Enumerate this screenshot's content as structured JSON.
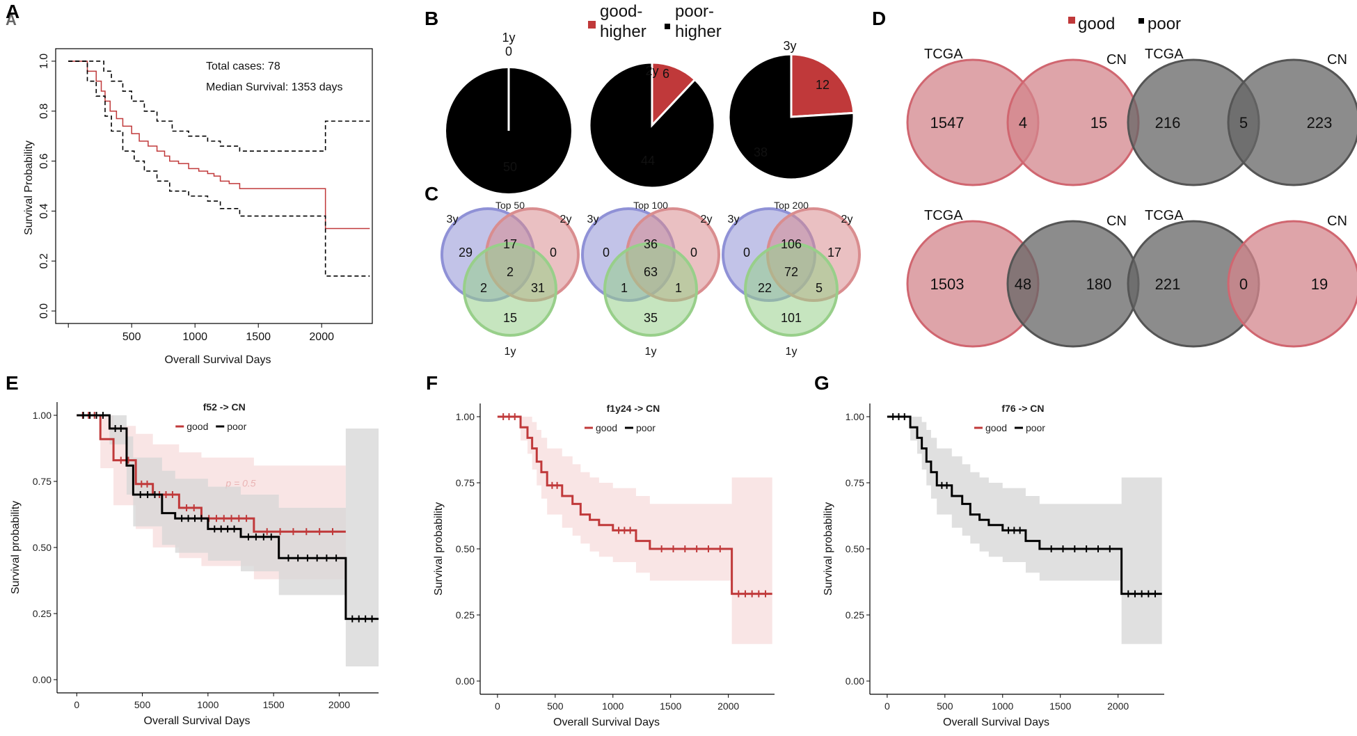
{
  "colors": {
    "good": "#c0393a",
    "poor": "#000000",
    "venn_blue": "#8f91d6",
    "venn_red": "#d98d8f",
    "venn_green": "#98cf8a",
    "venn_good_fill": "#d3868c",
    "venn_poor_fill": "#666666",
    "ci_good": "#f7dcdc",
    "ci_poor": "#d6d6d6"
  },
  "panel_labels": {
    "A": "A",
    "A_shadow": "A",
    "B": "B",
    "C": "C",
    "D": "D",
    "E": "E",
    "F": "F",
    "G": "G"
  },
  "chart_data": [
    {
      "panel": "A",
      "type": "line",
      "xlabel": "Overall Survival Days",
      "ylabel": "Survival Probability",
      "xlim": [
        -100,
        2400
      ],
      "ylim": [
        -0.05,
        1.05
      ],
      "xticks": [
        500,
        1000,
        1500,
        2000
      ],
      "yticks": [
        0.0,
        0.2,
        0.4,
        0.6,
        0.8,
        1.0
      ],
      "ytick_labels": [
        "0.0",
        "0.2",
        "0.4",
        "0.6",
        "0.8",
        "1.0"
      ],
      "annotations": [
        "Total cases: 78",
        "Median Survival: 1353 days"
      ],
      "series": [
        {
          "name": "survival",
          "style": "solid",
          "color": "#c0393a",
          "x": [
            0,
            150,
            150,
            220,
            220,
            260,
            260,
            290,
            290,
            330,
            330,
            380,
            380,
            430,
            430,
            500,
            500,
            560,
            560,
            630,
            630,
            700,
            700,
            760,
            760,
            800,
            800,
            870,
            870,
            950,
            950,
            1030,
            1030,
            1100,
            1100,
            1150,
            1150,
            1200,
            1200,
            1270,
            1270,
            1353,
            1353,
            2030,
            2030,
            2380
          ],
          "y": [
            1.0,
            1.0,
            0.96,
            0.96,
            0.92,
            0.92,
            0.88,
            0.88,
            0.84,
            0.84,
            0.8,
            0.8,
            0.77,
            0.77,
            0.74,
            0.74,
            0.71,
            0.71,
            0.68,
            0.68,
            0.66,
            0.66,
            0.64,
            0.64,
            0.62,
            0.62,
            0.6,
            0.6,
            0.59,
            0.59,
            0.57,
            0.57,
            0.56,
            0.56,
            0.55,
            0.55,
            0.54,
            0.54,
            0.52,
            0.52,
            0.51,
            0.51,
            0.49,
            0.49,
            0.33,
            0.33
          ]
        },
        {
          "name": "upper_ci",
          "style": "dashed",
          "color": "#000000",
          "x": [
            0,
            280,
            280,
            340,
            340,
            430,
            430,
            500,
            500,
            600,
            600,
            700,
            700,
            820,
            820,
            950,
            950,
            1100,
            1100,
            1200,
            1200,
            1353,
            1353,
            2030,
            2030,
            2380
          ],
          "y": [
            1.0,
            1.0,
            0.96,
            0.96,
            0.92,
            0.92,
            0.88,
            0.88,
            0.84,
            0.84,
            0.8,
            0.8,
            0.76,
            0.76,
            0.72,
            0.72,
            0.7,
            0.7,
            0.68,
            0.68,
            0.66,
            0.66,
            0.64,
            0.64,
            0.76,
            0.76
          ]
        },
        {
          "name": "lower_ci",
          "style": "dashed",
          "color": "#000000",
          "x": [
            0,
            150,
            150,
            220,
            220,
            290,
            290,
            340,
            340,
            430,
            430,
            520,
            520,
            600,
            600,
            700,
            700,
            800,
            800,
            950,
            950,
            1100,
            1100,
            1200,
            1200,
            1353,
            1353,
            2030,
            2030,
            2380
          ],
          "y": [
            1.0,
            1.0,
            0.92,
            0.92,
            0.86,
            0.86,
            0.78,
            0.78,
            0.72,
            0.72,
            0.64,
            0.64,
            0.6,
            0.6,
            0.56,
            0.56,
            0.52,
            0.52,
            0.48,
            0.48,
            0.46,
            0.46,
            0.44,
            0.44,
            0.41,
            0.41,
            0.38,
            0.38,
            0.14,
            0.14
          ]
        }
      ]
    },
    {
      "panel": "B",
      "type": "pie",
      "legend": [
        {
          "label": "good-\nhigher",
          "line1": "good-",
          "line2": "higher",
          "color": "#c0393a"
        },
        {
          "label": "poor-\nhigher",
          "line1": "poor-",
          "line2": "higher",
          "color": "#000000"
        }
      ],
      "pies": [
        {
          "title": "1y",
          "slices": [
            {
              "label": "good",
              "value": 0,
              "display": "0"
            },
            {
              "label": "poor",
              "value": 50,
              "display": "50"
            }
          ]
        },
        {
          "title": "2y",
          "slices": [
            {
              "label": "good",
              "value": 6,
              "display": "6"
            },
            {
              "label": "poor",
              "value": 44,
              "display": "44"
            }
          ]
        },
        {
          "title": "3y",
          "slices": [
            {
              "label": "good",
              "value": 12,
              "display": "12"
            },
            {
              "label": "poor",
              "value": 38,
              "display": "38"
            }
          ]
        }
      ]
    },
    {
      "panel": "C",
      "type": "venn3",
      "diagrams": [
        {
          "title": "Top 50",
          "sets": [
            "3y",
            "2y",
            "1y"
          ],
          "regions": {
            "only_3y": "29",
            "3y_2y": "17",
            "only_2y": "0",
            "all": "2",
            "3y_1y": "2",
            "2y_1y": "31",
            "only_1y": "15"
          }
        },
        {
          "title": "Top 100",
          "sets": [
            "3y",
            "2y",
            "1y"
          ],
          "regions": {
            "only_3y": "0",
            "3y_2y": "36",
            "only_2y": "0",
            "all": "63",
            "3y_1y": "1",
            "2y_1y": "1",
            "only_1y": "35"
          }
        },
        {
          "title": "Top 200",
          "sets": [
            "3y",
            "2y",
            "1y"
          ],
          "regions": {
            "only_3y": "0",
            "3y_2y": "106",
            "only_2y": "17",
            "all": "72",
            "3y_1y": "22",
            "2y_1y": "5",
            "only_1y": "101"
          }
        }
      ]
    },
    {
      "panel": "D",
      "type": "venn2",
      "legend": [
        {
          "label": "good",
          "color": "#c0393a"
        },
        {
          "label": "poor",
          "color": "#000000"
        }
      ],
      "diagrams": [
        {
          "left": "TCGA",
          "right": "CN",
          "left_fill": "good",
          "right_fill": "good",
          "values": [
            "1547",
            "4",
            "15"
          ]
        },
        {
          "left": "TCGA",
          "right": "CN",
          "left_fill": "poor",
          "right_fill": "poor",
          "values": [
            "216",
            "5",
            "223"
          ]
        },
        {
          "left": "TCGA",
          "right": "CN",
          "left_fill": "good",
          "right_fill": "poor",
          "values": [
            "1503",
            "48",
            "180"
          ]
        },
        {
          "left": "TCGA",
          "right": "CN",
          "left_fill": "poor",
          "right_fill": "good",
          "values": [
            "221",
            "0",
            "19"
          ]
        }
      ]
    },
    {
      "panel": "E",
      "type": "line",
      "title": "f52 -> CN",
      "legend": [
        "good",
        "poor"
      ],
      "annotation": "p = 0.5",
      "xlabel": "Overall Survival Days",
      "ylabel": "Survival probability",
      "xlim": [
        -150,
        2300
      ],
      "ylim": [
        -0.05,
        1.05
      ],
      "xticks": [
        0,
        500,
        1000,
        1500,
        2000
      ],
      "yticks": [
        0.0,
        0.25,
        0.5,
        0.75,
        1.0
      ],
      "ytick_labels": [
        "0.00",
        "0.25",
        "0.50",
        "0.75",
        "1.00"
      ],
      "series": [
        {
          "name": "good",
          "color": "#c0393a",
          "x": [
            0,
            180,
            180,
            280,
            280,
            450,
            450,
            580,
            580,
            780,
            780,
            950,
            950,
            1350,
            1350,
            2050
          ],
          "y": [
            1.0,
            1.0,
            0.91,
            0.91,
            0.83,
            0.83,
            0.74,
            0.74,
            0.7,
            0.7,
            0.65,
            0.65,
            0.61,
            0.61,
            0.56,
            0.56
          ],
          "ci_upper": [
            1.0,
            1.0,
            1.0,
            1.0,
            0.96,
            0.96,
            0.93,
            0.93,
            0.89,
            0.89,
            0.86,
            0.86,
            0.84,
            0.84,
            0.81,
            0.81
          ],
          "ci_lower": [
            1.0,
            1.0,
            0.8,
            0.8,
            0.66,
            0.66,
            0.57,
            0.57,
            0.5,
            0.5,
            0.46,
            0.46,
            0.43,
            0.43,
            0.38,
            0.38
          ]
        },
        {
          "name": "poor",
          "color": "#000000",
          "x": [
            0,
            250,
            250,
            380,
            380,
            430,
            430,
            650,
            650,
            750,
            750,
            1000,
            1000,
            1250,
            1250,
            1540,
            1540,
            2050,
            2050,
            2300
          ],
          "y": [
            1.0,
            1.0,
            0.95,
            0.95,
            0.81,
            0.81,
            0.7,
            0.7,
            0.63,
            0.63,
            0.61,
            0.61,
            0.57,
            0.57,
            0.54,
            0.54,
            0.46,
            0.46,
            0.23,
            0.23
          ],
          "ci_upper": [
            1.0,
            1.0,
            1.0,
            1.0,
            0.92,
            0.92,
            0.84,
            0.84,
            0.79,
            0.79,
            0.76,
            0.76,
            0.73,
            0.73,
            0.7,
            0.7,
            0.65,
            0.65,
            0.95,
            0.95
          ],
          "ci_lower": [
            1.0,
            1.0,
            0.89,
            0.89,
            0.7,
            0.7,
            0.58,
            0.58,
            0.51,
            0.51,
            0.48,
            0.48,
            0.45,
            0.45,
            0.41,
            0.41,
            0.32,
            0.32,
            0.05,
            0.05
          ]
        }
      ]
    },
    {
      "panel": "F",
      "type": "line",
      "title": "f1y24 -> CN",
      "legend": [
        "good",
        "poor"
      ],
      "xlabel": "Overall Survival Days",
      "ylabel": "Survival probability",
      "xlim": [
        -150,
        2400
      ],
      "ylim": [
        -0.05,
        1.05
      ],
      "xticks": [
        0,
        500,
        1000,
        1500,
        2000
      ],
      "yticks": [
        0.0,
        0.25,
        0.5,
        0.75,
        1.0
      ],
      "ytick_labels": [
        "0.00",
        "0.25",
        "0.50",
        "0.75",
        "1.00"
      ],
      "series": [
        {
          "name": "good",
          "color": "#c0393a",
          "x": [
            0,
            200,
            200,
            260,
            260,
            300,
            300,
            340,
            340,
            380,
            380,
            430,
            430,
            560,
            560,
            650,
            650,
            720,
            720,
            800,
            800,
            880,
            880,
            1000,
            1000,
            1200,
            1200,
            1320,
            1320,
            2030,
            2030,
            2380
          ],
          "y": [
            1.0,
            1.0,
            0.96,
            0.96,
            0.92,
            0.92,
            0.88,
            0.88,
            0.83,
            0.83,
            0.79,
            0.79,
            0.74,
            0.74,
            0.7,
            0.7,
            0.67,
            0.67,
            0.63,
            0.63,
            0.61,
            0.61,
            0.59,
            0.59,
            0.57,
            0.57,
            0.53,
            0.53,
            0.5,
            0.5,
            0.33,
            0.33
          ],
          "ci_upper": [
            1.0,
            1.0,
            1.0,
            1.0,
            1.0,
            1.0,
            0.98,
            0.98,
            0.95,
            0.95,
            0.92,
            0.92,
            0.88,
            0.88,
            0.85,
            0.85,
            0.82,
            0.82,
            0.79,
            0.79,
            0.77,
            0.77,
            0.75,
            0.75,
            0.73,
            0.73,
            0.7,
            0.7,
            0.67,
            0.67,
            0.77,
            0.77
          ],
          "ci_lower": [
            1.0,
            1.0,
            0.91,
            0.91,
            0.86,
            0.86,
            0.8,
            0.8,
            0.74,
            0.74,
            0.69,
            0.69,
            0.63,
            0.63,
            0.58,
            0.58,
            0.55,
            0.55,
            0.52,
            0.52,
            0.49,
            0.49,
            0.47,
            0.47,
            0.45,
            0.45,
            0.41,
            0.41,
            0.38,
            0.38,
            0.14,
            0.14
          ]
        }
      ]
    },
    {
      "panel": "G",
      "type": "line",
      "title": "f76 -> CN",
      "legend": [
        "good",
        "poor"
      ],
      "xlabel": "Overall Survival Days",
      "ylabel": "Survival probability",
      "xlim": [
        -150,
        2400
      ],
      "ylim": [
        -0.05,
        1.05
      ],
      "xticks": [
        0,
        500,
        1000,
        1500,
        2000
      ],
      "yticks": [
        0.0,
        0.25,
        0.5,
        0.75,
        1.0
      ],
      "ytick_labels": [
        "0.00",
        "0.25",
        "0.50",
        "0.75",
        "1.00"
      ],
      "series": [
        {
          "name": "poor",
          "color": "#000000",
          "x": [
            0,
            200,
            200,
            260,
            260,
            300,
            300,
            340,
            340,
            380,
            380,
            430,
            430,
            560,
            560,
            650,
            650,
            720,
            720,
            800,
            800,
            880,
            880,
            1000,
            1000,
            1200,
            1200,
            1320,
            1320,
            2030,
            2030,
            2380
          ],
          "y": [
            1.0,
            1.0,
            0.96,
            0.96,
            0.92,
            0.92,
            0.88,
            0.88,
            0.83,
            0.83,
            0.79,
            0.79,
            0.74,
            0.74,
            0.7,
            0.7,
            0.67,
            0.67,
            0.63,
            0.63,
            0.61,
            0.61,
            0.59,
            0.59,
            0.57,
            0.57,
            0.53,
            0.53,
            0.5,
            0.5,
            0.33,
            0.33
          ],
          "ci_upper": [
            1.0,
            1.0,
            1.0,
            1.0,
            1.0,
            1.0,
            0.98,
            0.98,
            0.95,
            0.95,
            0.92,
            0.92,
            0.88,
            0.88,
            0.85,
            0.85,
            0.82,
            0.82,
            0.79,
            0.79,
            0.77,
            0.77,
            0.75,
            0.75,
            0.73,
            0.73,
            0.7,
            0.7,
            0.67,
            0.67,
            0.77,
            0.77
          ],
          "ci_lower": [
            1.0,
            1.0,
            0.91,
            0.91,
            0.86,
            0.86,
            0.8,
            0.8,
            0.74,
            0.74,
            0.69,
            0.69,
            0.63,
            0.63,
            0.58,
            0.58,
            0.55,
            0.55,
            0.52,
            0.52,
            0.49,
            0.49,
            0.47,
            0.47,
            0.45,
            0.45,
            0.41,
            0.41,
            0.38,
            0.38,
            0.14,
            0.14
          ]
        }
      ]
    }
  ]
}
